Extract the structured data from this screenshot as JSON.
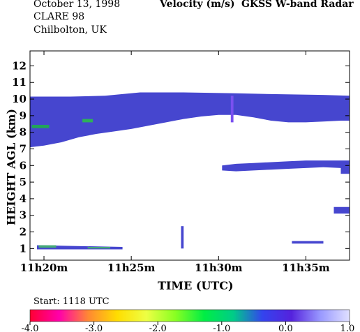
{
  "header": {
    "date": "October  13, 1998",
    "campaign": "CLARE 98",
    "site": "Chilbolton, UK",
    "variable": "Velocity (m/s)",
    "instrument": "GKSS  W-band Radar",
    "start": "Start: 1118 UTC"
  },
  "chart_data": {
    "type": "heatmap",
    "xlabel": "TIME (UTC)",
    "ylabel": "HEIGHT AGL (km)",
    "xlim": [
      19.2,
      37.5
    ],
    "ylim": [
      0.3,
      12.9
    ],
    "x_tick_values": [
      20,
      25,
      30,
      35
    ],
    "x_tick_labels": [
      "11h20m",
      "11h25m",
      "11h30m",
      "11h35m"
    ],
    "y_ticks": [
      1,
      2,
      3,
      4,
      5,
      6,
      7,
      8,
      9,
      10,
      11,
      12
    ],
    "colorbar": {
      "range": [
        -4.0,
        1.0
      ],
      "ticks": [
        "-4.0",
        "-3.0",
        "-2.0",
        "-1.0",
        "0.0",
        "1.0"
      ],
      "tick_values": [
        -4,
        -3,
        -2,
        -1,
        0,
        1
      ],
      "colors": [
        "#ff0033",
        "#ff00aa",
        "#ff8833",
        "#ffdd00",
        "#eeff44",
        "#88ff22",
        "#00ee44",
        "#00cc88",
        "#3344ee",
        "#5522dd",
        "#9999ff",
        "#e0e0ff"
      ]
    },
    "regions": [
      {
        "name": "upper cloud",
        "value": -0.15,
        "color": "#4646cf",
        "top": [
          [
            19.2,
            10.15
          ],
          [
            21.5,
            10.15
          ],
          [
            23.5,
            10.2
          ],
          [
            25.5,
            10.4
          ],
          [
            28,
            10.4
          ],
          [
            31,
            10.35
          ],
          [
            33,
            10.3
          ],
          [
            36,
            10.25
          ],
          [
            37.5,
            10.2
          ]
        ],
        "bottom": [
          [
            19.2,
            7.1
          ],
          [
            20,
            7.2
          ],
          [
            21,
            7.4
          ],
          [
            22,
            7.7
          ],
          [
            23,
            7.9
          ],
          [
            24,
            8.05
          ],
          [
            25,
            8.2
          ],
          [
            26,
            8.4
          ],
          [
            27,
            8.6
          ],
          [
            28,
            8.8
          ],
          [
            29,
            8.95
          ],
          [
            30,
            9.05
          ],
          [
            31,
            9.05
          ],
          [
            32,
            8.9
          ],
          [
            33,
            8.7
          ],
          [
            34,
            8.6
          ],
          [
            35,
            8.6
          ],
          [
            36,
            8.65
          ],
          [
            37,
            8.7
          ],
          [
            37.5,
            8.7
          ]
        ]
      },
      {
        "name": "middle layer",
        "value": -0.15,
        "color": "#4646cf",
        "top": [
          [
            30.2,
            6.0
          ],
          [
            31,
            6.1
          ],
          [
            32,
            6.15
          ],
          [
            33,
            6.2
          ],
          [
            34,
            6.25
          ],
          [
            35,
            6.3
          ],
          [
            36,
            6.3
          ],
          [
            37.5,
            6.3
          ]
        ],
        "bottom": [
          [
            30.2,
            5.7
          ],
          [
            31,
            5.65
          ],
          [
            32,
            5.7
          ],
          [
            33,
            5.75
          ],
          [
            34,
            5.8
          ],
          [
            35,
            5.85
          ],
          [
            36,
            5.9
          ],
          [
            37,
            5.85
          ],
          [
            37.5,
            5.8
          ]
        ]
      },
      {
        "name": "tail",
        "value": -0.15,
        "color": "#4646cf",
        "top": [
          [
            37,
            5.9
          ],
          [
            37.5,
            5.9
          ]
        ],
        "bottom": [
          [
            37,
            5.5
          ],
          [
            37.5,
            5.5
          ]
        ]
      },
      {
        "name": "fall streak",
        "value": -0.15,
        "color": "#4646cf",
        "top": [
          [
            36.6,
            3.5
          ],
          [
            37.5,
            3.5
          ]
        ],
        "bottom": [
          [
            36.6,
            3.1
          ],
          [
            37.5,
            3.1
          ]
        ]
      },
      {
        "name": "low band",
        "value": -0.15,
        "color": "#4646cf",
        "top": [
          [
            19.6,
            1.2
          ],
          [
            24.5,
            1.1
          ]
        ],
        "bottom": [
          [
            19.6,
            0.95
          ],
          [
            24.5,
            0.95
          ]
        ]
      },
      {
        "name": "streak 11h28m",
        "value": -0.15,
        "color": "#4646cf",
        "top": [
          [
            27.85,
            2.35
          ],
          [
            28.0,
            2.35
          ]
        ],
        "bottom": [
          [
            27.85,
            1.0
          ],
          [
            28.0,
            1.0
          ]
        ]
      },
      {
        "name": "low patch east",
        "value": -0.15,
        "color": "#4646cf",
        "top": [
          [
            34.2,
            1.45
          ],
          [
            36,
            1.45
          ]
        ],
        "bottom": [
          [
            34.2,
            1.3
          ],
          [
            36,
            1.3
          ]
        ]
      },
      {
        "name": "green patch 1",
        "value": -1.0,
        "color": "#22a35a",
        "top": [
          [
            19.3,
            8.45
          ],
          [
            20.3,
            8.45
          ]
        ],
        "bottom": [
          [
            19.3,
            8.25
          ],
          [
            20.3,
            8.25
          ]
        ]
      },
      {
        "name": "green patch 2",
        "value": -1.0,
        "color": "#2eb05a",
        "top": [
          [
            22.2,
            8.8
          ],
          [
            22.8,
            8.8
          ]
        ],
        "bottom": [
          [
            22.2,
            8.6
          ],
          [
            22.8,
            8.6
          ]
        ]
      },
      {
        "name": "green low",
        "value": -1.0,
        "color": "#44aa77",
        "top": [
          [
            19.7,
            1.2
          ],
          [
            20.7,
            1.2
          ]
        ],
        "bottom": [
          [
            19.7,
            1.05
          ],
          [
            20.7,
            1.05
          ]
        ]
      },
      {
        "name": "green low 2",
        "value": -1.0,
        "color": "#44aa77",
        "top": [
          [
            22.5,
            1.1
          ],
          [
            23.8,
            1.1
          ]
        ],
        "bottom": [
          [
            22.5,
            1.0
          ],
          [
            23.8,
            1.0
          ]
        ]
      },
      {
        "name": "purple column",
        "value": 0.3,
        "color": "#7a50f0",
        "top": [
          [
            30.7,
            10.2
          ],
          [
            30.85,
            10.2
          ]
        ],
        "bottom": [
          [
            30.7,
            8.6
          ],
          [
            30.85,
            8.6
          ]
        ]
      }
    ]
  }
}
